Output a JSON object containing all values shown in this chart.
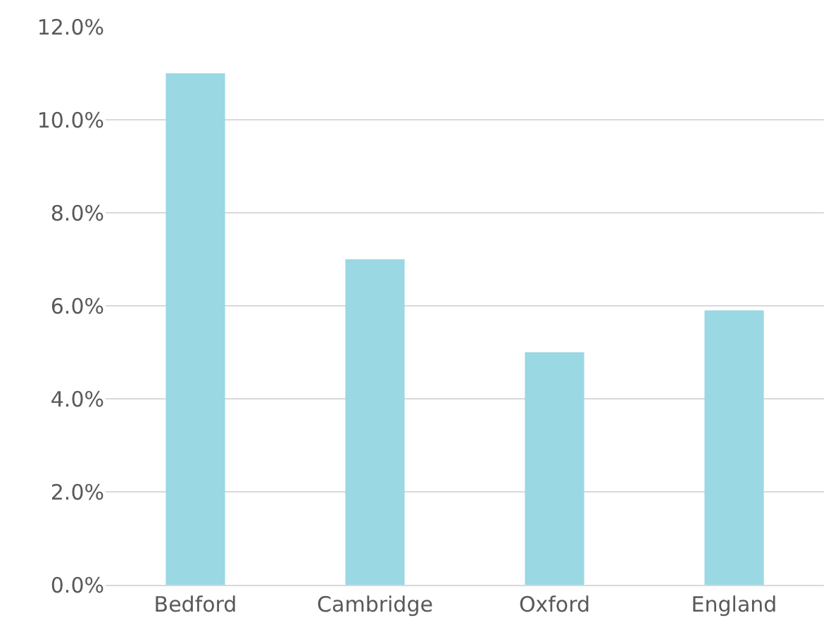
{
  "chart_data": {
    "type": "bar",
    "categories": [
      "Bedford",
      "Cambridge",
      "Oxford",
      "England"
    ],
    "values": [
      11.0,
      7.0,
      5.0,
      5.9
    ],
    "color": "#9ad8e3",
    "ylim": [
      0,
      12
    ],
    "yticks": [
      {
        "value": 0,
        "label": "0.0%"
      },
      {
        "value": 2,
        "label": "2.0%"
      },
      {
        "value": 4,
        "label": "4.0%"
      },
      {
        "value": 6,
        "label": "6.0%"
      },
      {
        "value": 8,
        "label": "8.0%"
      },
      {
        "value": 10,
        "label": "10.0%"
      },
      {
        "value": 12,
        "label": "12.0%"
      }
    ],
    "grid": "y"
  }
}
